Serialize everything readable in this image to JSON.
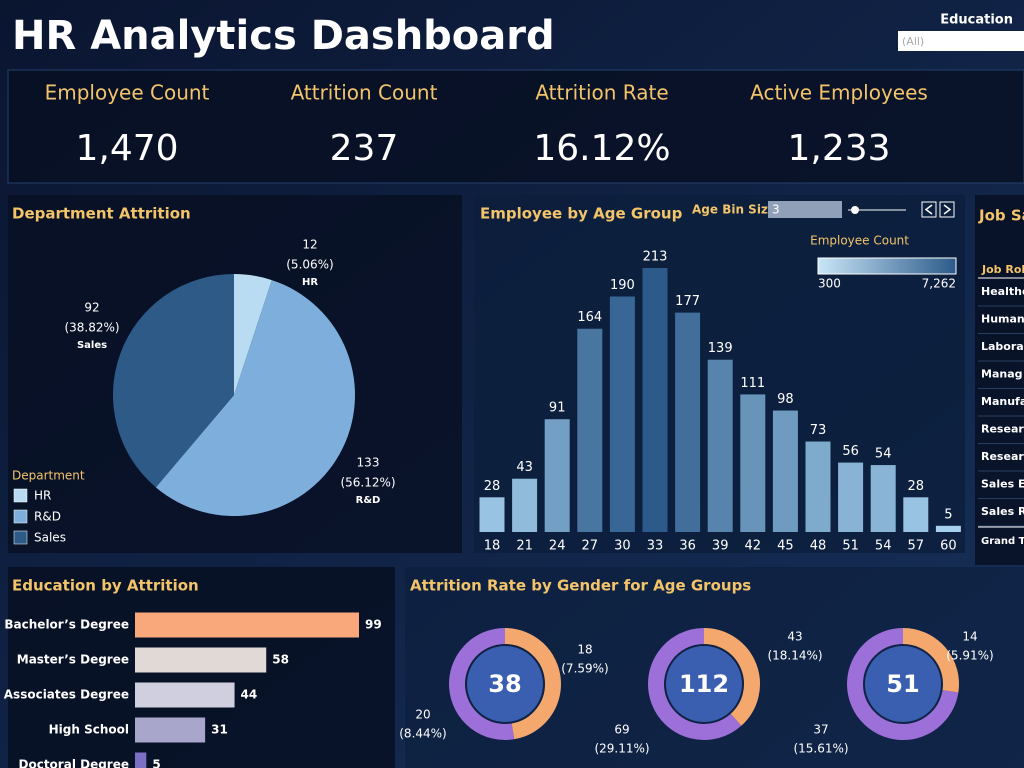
{
  "header": {
    "title": "HR Analytics Dashboard",
    "filter_label": "Education",
    "filter_value": "(All)"
  },
  "kpis": [
    {
      "label": "Employee Count",
      "value": "1,470"
    },
    {
      "label": "Attrition Count",
      "value": "237"
    },
    {
      "label": "Attrition Rate",
      "value": "16.12%"
    },
    {
      "label": "Active Employees",
      "value": "1,233"
    }
  ],
  "department_attrition": {
    "title": "Department Attrition",
    "legend_title": "Department",
    "slices": [
      {
        "name": "HR",
        "value": 12,
        "percent_label": "(5.06%)",
        "color": "#b9dcf2"
      },
      {
        "name": "R&D",
        "value": 133,
        "percent_label": "(56.12%)",
        "color": "#7eaedb"
      },
      {
        "name": "Sales",
        "value": 92,
        "percent_label": "(38.82%)",
        "color": "#2e5a88"
      }
    ]
  },
  "age_group": {
    "title": "Employee by Age Group",
    "bin_label": "Age Bin Size",
    "bin_value": 3,
    "legend_title": "Employee Count",
    "legend_min": 300,
    "legend_max": {
      "value": 7262,
      "label": "7,262"
    },
    "categories": [
      18,
      21,
      24,
      27,
      30,
      33,
      36,
      39,
      42,
      45,
      48,
      51,
      54,
      57,
      60
    ],
    "values": [
      28,
      43,
      91,
      164,
      190,
      213,
      177,
      139,
      111,
      98,
      73,
      56,
      54,
      28,
      5
    ]
  },
  "job_panel": {
    "title": "Job Sa",
    "header": "Job Rol",
    "rows": [
      "Healthc",
      "Human",
      "Labora",
      "Manag",
      "Manufa",
      "Resear",
      "Resear",
      "Sales E",
      "Sales R"
    ],
    "total": "Grand To"
  },
  "education": {
    "title": "Education by Attrition",
    "categories": [
      "Bachelor’s Degree",
      "Master’s Degree",
      "Associates Degree",
      "High School",
      "Doctoral Degree"
    ],
    "values": [
      99,
      58,
      44,
      31,
      5
    ],
    "colors": [
      "#f8a87a",
      "#e0d9d6",
      "#cfcfdf",
      "#a8a7cb",
      "#7b6fc6"
    ]
  },
  "gender": {
    "title": "Attrition Rate by Gender for Age Groups",
    "groups": [
      {
        "total": 38,
        "segments": [
          {
            "value": 18,
            "label": "(7.59%)",
            "color": "#f4a86e"
          },
          {
            "value": 20,
            "label": "(8.44%)",
            "color": "#9d6fd8"
          }
        ]
      },
      {
        "total": 112,
        "segments": [
          {
            "value": 43,
            "label": "(18.14%)",
            "color": "#f4a86e"
          },
          {
            "value": 69,
            "label": "(29.11%)",
            "color": "#9d6fd8"
          }
        ]
      },
      {
        "total": 51,
        "segments": [
          {
            "value": 14,
            "label": "(5.91%)",
            "color": "#f4a86e"
          },
          {
            "value": 37,
            "label": "(15.61%)",
            "color": "#9d6fd8"
          }
        ]
      }
    ]
  }
}
